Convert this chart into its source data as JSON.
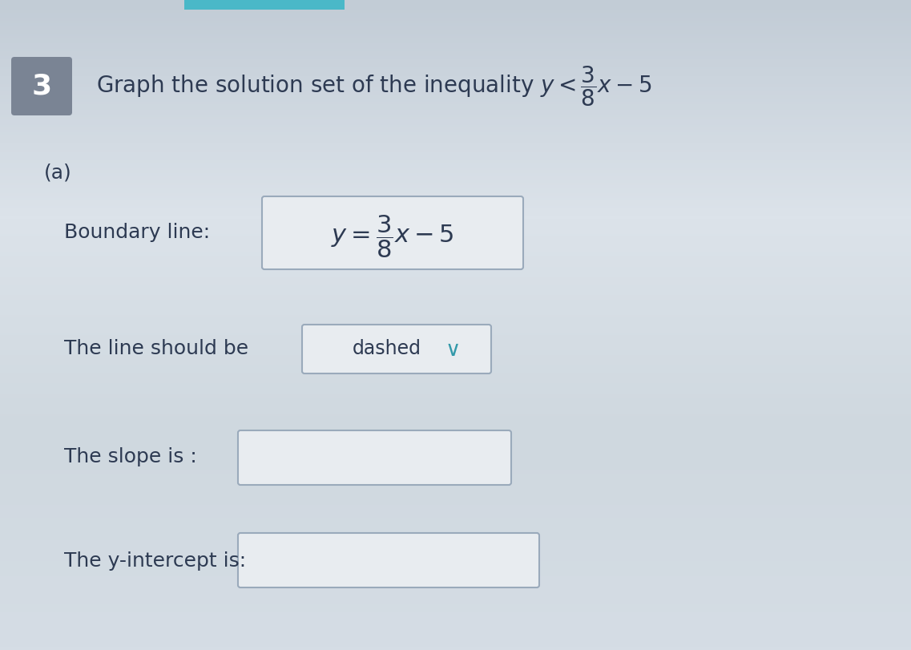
{
  "problem_number": "3",
  "part_label": "(a)",
  "boundary_label": "Boundary line:",
  "line_label": "The line should be",
  "line_type": "dashed",
  "slope_label": "The slope is :",
  "intercept_label": "The y-intercept is:",
  "bg_color_top": "#b8c4ce",
  "bg_color_bottom": "#dde3e9",
  "bg_color_mid": "#ccd4dc",
  "box_fill": "#e8ecf0",
  "box_border": "#9aaabb",
  "text_color": "#2d3a52",
  "teal_color": "#2a9bb5",
  "number_bg": "#7a8494",
  "title_fontsize": 20,
  "label_fontsize": 18,
  "eq_fontsize": 19,
  "checkmark_color": "#3399aa"
}
